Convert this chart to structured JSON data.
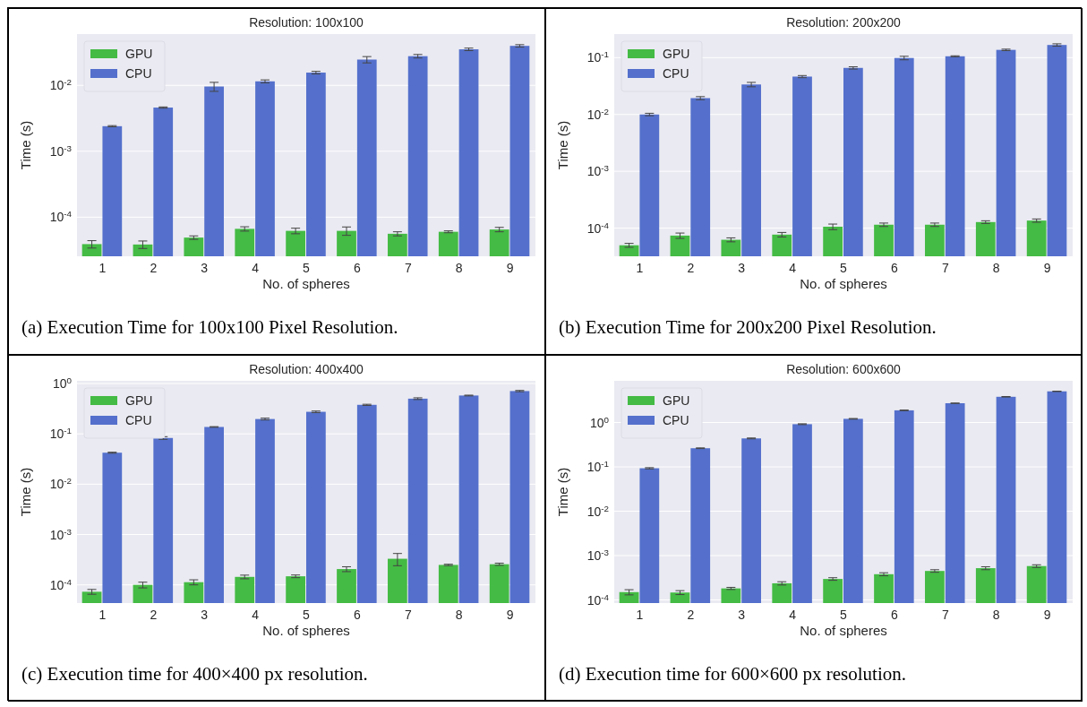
{
  "chart_data": [
    {
      "type": "bar",
      "title": "Resolution: 100x100",
      "xlabel": "No. of spheres",
      "ylabel": "Time (s)",
      "categories": [
        "1",
        "2",
        "3",
        "4",
        "5",
        "6",
        "7",
        "8",
        "9"
      ],
      "log": true,
      "grid": "y",
      "legend": "top left",
      "ylim": [
        2.55e-05,
        0.06
      ],
      "yticks": [
        {
          "value": 0.0001,
          "label": "10$^{-4}$"
        },
        {
          "value": 0.001,
          "label": "10$^{-3}$"
        },
        {
          "value": 0.01,
          "label": "10$^{-2}$"
        }
      ],
      "series": [
        {
          "name": "GPU",
          "color": "#44bb44",
          "values": [
            3.9e-05,
            3.85e-05,
            4.9e-05,
            6.65e-05,
            6.2e-05,
            6.2e-05,
            5.6e-05,
            6e-05,
            6.5e-05
          ],
          "errors": [
            5e-06,
            5e-06,
            3e-06,
            5e-06,
            6e-06,
            9e-06,
            4e-06,
            2e-06,
            5e-06
          ]
        },
        {
          "name": "CPU",
          "color": "#5470cc",
          "values": [
            0.0024,
            0.0046,
            0.0096,
            0.0115,
            0.0156,
            0.0246,
            0.0277,
            0.0352,
            0.0397
          ],
          "errors": [
            5e-05,
            0.0001,
            0.0015,
            0.0006,
            0.0007,
            0.0027,
            0.0017,
            0.0015,
            0.0017
          ]
        }
      ],
      "annotations": [
        "(a) Execution Time for 100x100 Pixel Resolution."
      ]
    },
    {
      "type": "bar",
      "title": "Resolution: 200x200",
      "xlabel": "No. of spheres",
      "ylabel": "Time (s)",
      "categories": [
        "1",
        "2",
        "3",
        "4",
        "5",
        "6",
        "7",
        "8",
        "9"
      ],
      "log": true,
      "grid": "y",
      "legend": "top left",
      "ylim": [
        3.2e-05,
        0.26
      ],
      "yticks": [
        {
          "value": 0.0001,
          "label": "10$^{-4}$"
        },
        {
          "value": 0.001,
          "label": "10$^{-3}$"
        },
        {
          "value": 0.01,
          "label": "10$^{-2}$"
        },
        {
          "value": 0.1,
          "label": "10$^{-1}$"
        }
      ],
      "series": [
        {
          "name": "GPU",
          "color": "#44bb44",
          "values": [
            5e-05,
            7.4e-05,
            6.25e-05,
            7.7e-05,
            0.000106,
            0.000115,
            0.000115,
            0.000128,
            0.000136
          ],
          "errors": [
            4e-06,
            8e-06,
            5e-06,
            7e-06,
            1.2e-05,
            8e-06,
            8e-06,
            7e-06,
            9e-06
          ]
        },
        {
          "name": "CPU",
          "color": "#5470cc",
          "values": [
            0.01,
            0.0194,
            0.0337,
            0.0464,
            0.066,
            0.0986,
            0.1057,
            0.137,
            0.167
          ],
          "errors": [
            0.0005,
            0.0012,
            0.003,
            0.002,
            0.003,
            0.007,
            0.002,
            0.004,
            0.008
          ]
        }
      ],
      "annotations": [
        "(b) Execution Time for 200x200 Pixel Resolution."
      ]
    },
    {
      "type": "bar",
      "title": "Resolution: 400x400",
      "xlabel": "No. of spheres",
      "ylabel": "Time (s)",
      "categories": [
        "1",
        "2",
        "3",
        "4",
        "5",
        "6",
        "7",
        "8",
        "9"
      ],
      "log": true,
      "grid": "y",
      "legend": "top left",
      "ylim": [
        4.35e-05,
        1.13
      ],
      "yticks": [
        {
          "value": 0.0001,
          "label": "10$^{-4}$"
        },
        {
          "value": 0.001,
          "label": "10$^{-3}$"
        },
        {
          "value": 0.01,
          "label": "10$^{-2}$"
        },
        {
          "value": 0.1,
          "label": "10$^{-1}$"
        },
        {
          "value": 1,
          "label": "10$^{0}$"
        }
      ],
      "series": [
        {
          "name": "GPU",
          "color": "#44bb44",
          "values": [
            7.3e-05,
            0.0001,
            0.000113,
            0.000144,
            0.000148,
            0.000206,
            0.00033,
            0.000249,
            0.000257
          ],
          "errors": [
            8e-06,
            1.3e-05,
            1.3e-05,
            1.2e-05,
            9e-06,
            2.3e-05,
            9e-05,
            8e-06,
            1.3e-05
          ]
        },
        {
          "name": "CPU",
          "color": "#5470cc",
          "values": [
            0.0422,
            0.0828,
            0.137,
            0.197,
            0.274,
            0.377,
            0.5,
            0.577,
            0.708
          ],
          "errors": [
            0.001,
            0.005,
            0.002,
            0.008,
            0.01,
            0.01,
            0.02,
            0.01,
            0.02
          ]
        }
      ],
      "annotations": [
        "(c) Execution time for 400×400 px resolution."
      ]
    },
    {
      "type": "bar",
      "title": "Resolution: 600x600",
      "xlabel": "No. of spheres",
      "ylabel": "Time (s)",
      "categories": [
        "1",
        "2",
        "3",
        "4",
        "5",
        "6",
        "7",
        "8",
        "9"
      ],
      "log": true,
      "grid": "y",
      "legend": "top left",
      "ylim": [
        8.5e-05,
        8.7
      ],
      "yticks": [
        {
          "value": 0.0001,
          "label": "10$^{-4}$"
        },
        {
          "value": 0.001,
          "label": "10$^{-3}$"
        },
        {
          "value": 0.01,
          "label": "10$^{-2}$"
        },
        {
          "value": 0.1,
          "label": "10$^{-1}$"
        },
        {
          "value": 1,
          "label": "10$^{0}$"
        }
      ],
      "series": [
        {
          "name": "GPU",
          "color": "#44bb44",
          "values": [
            0.00015,
            0.000147,
            0.000182,
            0.000237,
            0.000297,
            0.00038,
            0.00045,
            0.00052,
            0.00058
          ],
          "errors": [
            2e-05,
            1.5e-05,
            1e-05,
            2e-05,
            2e-05,
            3e-05,
            3e-05,
            4e-05,
            4e-05
          ]
        },
        {
          "name": "CPU",
          "color": "#5470cc",
          "values": [
            0.093,
            0.263,
            0.438,
            0.916,
            1.21,
            1.88,
            2.72,
            3.8,
            5.04
          ],
          "errors": [
            0.003,
            0.005,
            0.01,
            0.02,
            0.02,
            0.03,
            0.03,
            0.05,
            0.05
          ]
        }
      ],
      "annotations": [
        "(d) Execution time for 600×600 px resolution."
      ]
    }
  ]
}
